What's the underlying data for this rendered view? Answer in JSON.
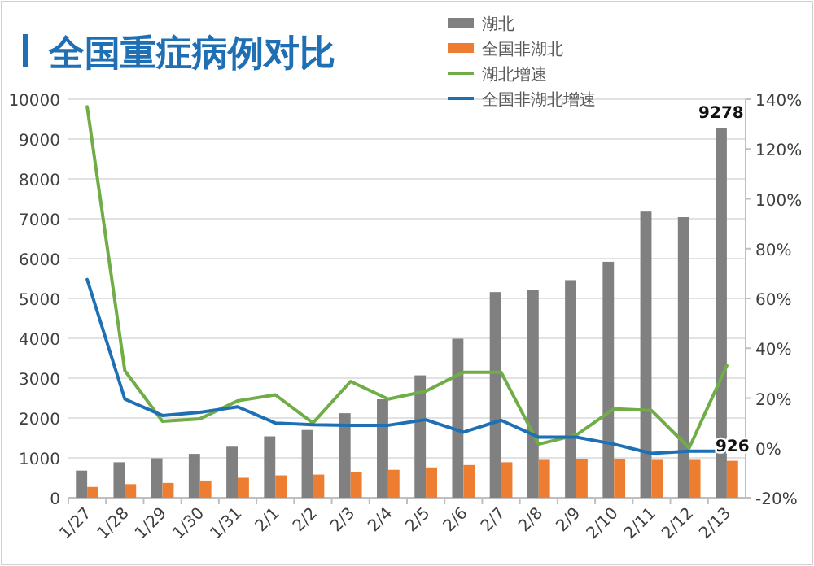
{
  "chart_data": {
    "type": "bar",
    "title": "全国重症病例对比",
    "categories": [
      "1/27",
      "1/28",
      "1/29",
      "1/30",
      "1/31",
      "2/1",
      "2/2",
      "2/3",
      "2/4",
      "2/5",
      "2/6",
      "2/7",
      "2/8",
      "2/9",
      "2/10",
      "2/11",
      "2/12",
      "2/13"
    ],
    "series": [
      {
        "name": "湖北",
        "color": "#808080",
        "values": [
          680,
          890,
          990,
          1100,
          1280,
          1540,
          1700,
          2120,
          2470,
          3070,
          3990,
          5160,
          5220,
          5460,
          5920,
          7180,
          7040,
          9278
        ],
        "value_labels": [
          null,
          null,
          null,
          null,
          null,
          null,
          null,
          null,
          null,
          null,
          null,
          null,
          null,
          null,
          null,
          null,
          null,
          "9278"
        ]
      },
      {
        "name": "全国非湖北",
        "color": "#ed7d31",
        "values": [
          270,
          340,
          370,
          430,
          500,
          560,
          580,
          640,
          700,
          760,
          820,
          890,
          950,
          970,
          980,
          950,
          950,
          926
        ],
        "value_labels": [
          null,
          null,
          null,
          null,
          null,
          null,
          null,
          null,
          null,
          null,
          null,
          null,
          null,
          null,
          null,
          null,
          null,
          "926"
        ]
      },
      {
        "name": "湖北增速",
        "type": "line",
        "axis": "y2",
        "color": "#70ad47",
        "values": [
          137,
          31,
          10.7,
          11.7,
          18.9,
          21.3,
          10,
          26.7,
          19.6,
          22.8,
          30.4,
          30.4,
          1.5,
          5.2,
          15.7,
          15,
          0,
          33
        ]
      },
      {
        "name": "全国非湖北增速",
        "type": "line",
        "axis": "y2",
        "color": "#1f6fb5",
        "values": [
          67.6,
          19.6,
          13,
          14.3,
          16.5,
          10,
          9.3,
          9.1,
          9.1,
          11.3,
          6.3,
          11.1,
          4.3,
          4.3,
          1.5,
          -2.2,
          -1.3,
          -1.3
        ]
      }
    ],
    "ylim": [
      0,
      10000
    ],
    "yticks": [
      0,
      1000,
      2000,
      3000,
      4000,
      5000,
      6000,
      7000,
      8000,
      9000,
      10000
    ],
    "y2lim": [
      -20,
      140
    ],
    "y2ticks": [
      {
        "value": -20,
        "label": "-20%"
      },
      {
        "value": 0,
        "label": "0%"
      },
      {
        "value": 20,
        "label": "20%"
      },
      {
        "value": 40,
        "label": "40%"
      },
      {
        "value": 60,
        "label": "60%"
      },
      {
        "value": 80,
        "label": "80%"
      },
      {
        "value": 100,
        "label": "100%"
      },
      {
        "value": 120,
        "label": "120%"
      },
      {
        "value": 140,
        "label": "140%"
      }
    ],
    "grid": "y",
    "legend": "top right",
    "marker": "none",
    "line_style": "solid"
  }
}
